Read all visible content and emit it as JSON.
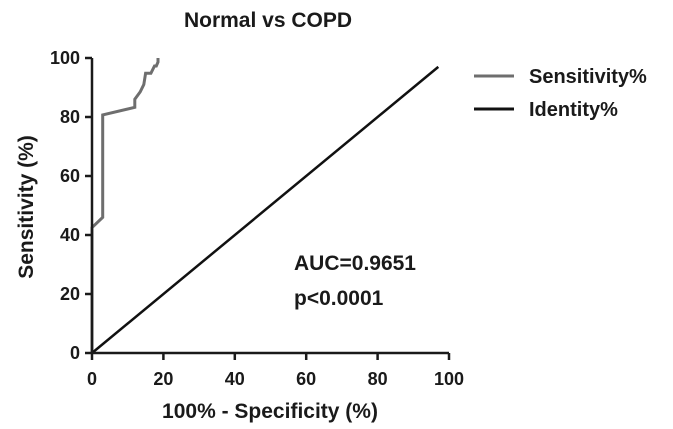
{
  "chart_data": {
    "type": "line",
    "title": "Normal vs COPD",
    "xlabel": "100% - Specificity (%)",
    "ylabel": "Sensitivity (%)",
    "xlim": [
      0,
      100
    ],
    "ylim": [
      0,
      100
    ],
    "xticks": [
      "0",
      "20",
      "40",
      "60",
      "80",
      "100"
    ],
    "yticks": [
      "0",
      "20",
      "40",
      "60",
      "80",
      "100"
    ],
    "grid": false,
    "legend_position": "right",
    "series": [
      {
        "name": "Sensitivity%",
        "color": "#6e6e6e",
        "x": [
          0,
          0,
          3,
          3,
          3,
          12,
          12,
          13.5,
          14.5,
          15,
          16.5,
          17.5,
          18,
          18.5,
          18.5
        ],
        "y": [
          0,
          42.5,
          46,
          53,
          80.7,
          83.3,
          86,
          88.5,
          91,
          94.8,
          94.8,
          97.3,
          97.3,
          98.6,
          100
        ]
      },
      {
        "name": "Identity%",
        "color": "#111111",
        "x": [
          0,
          97
        ],
        "y": [
          0,
          97
        ]
      }
    ],
    "annotations": [
      "AUC=0.9651",
      "p<0.0001"
    ]
  }
}
